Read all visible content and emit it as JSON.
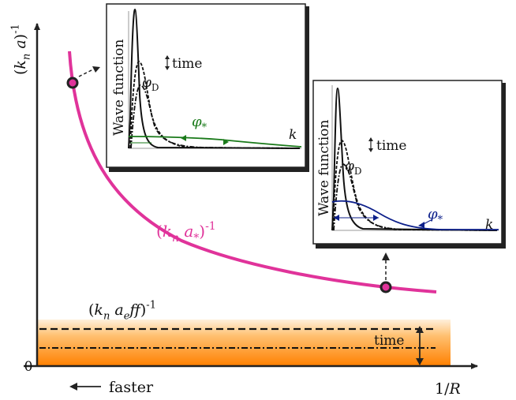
{
  "main_axes": {
    "y_label": "(k_n a)^{-1}",
    "x_label": "1/R",
    "origin_label": "0",
    "direction_label": "faster",
    "colors": {
      "axis": "#222222",
      "curve": "#e0339a",
      "band_top": "#ffe3bf",
      "band_bottom": "#ff8c00"
    }
  },
  "curve_label": "(k_n a_*)^{-1}",
  "band": {
    "label": "(k_n a_eff)^{-1}",
    "time_label": "time"
  },
  "inset_left": {
    "y_label": "Wave function",
    "time_label": "time",
    "phi_d_label": "φ_D",
    "phi_star_label": "φ_*",
    "k_label": "k",
    "phi_star_color": "#1a7a1a"
  },
  "inset_right": {
    "y_label": "Wave function",
    "time_label": "time",
    "phi_d_label": "φ_D",
    "phi_star_label": "φ_*",
    "k_label": "k",
    "phi_star_color": "#0c1f8a"
  }
}
